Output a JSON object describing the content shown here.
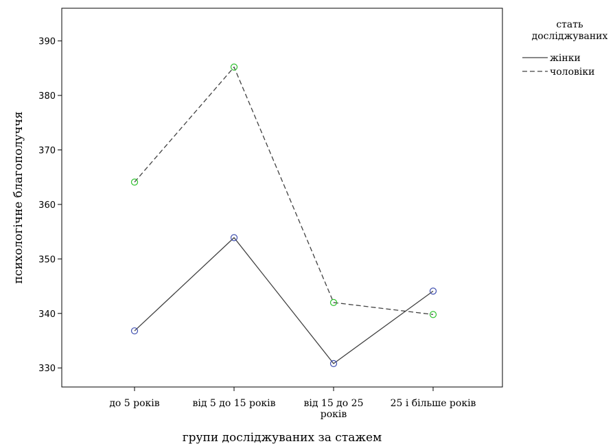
{
  "chart_data": {
    "type": "line",
    "xlabel": "групи досліджуваних за стажем",
    "ylabel": "психологічне благополуччя",
    "categories": [
      [
        "до 5 років"
      ],
      [
        "від 5 до 15 років"
      ],
      [
        "від 15 до 25",
        "років"
      ],
      [
        "25 і більше років"
      ]
    ],
    "ylim": [
      326.5,
      396
    ],
    "yticks": [
      330,
      340,
      350,
      360,
      370,
      380,
      390
    ],
    "grid": false,
    "legend": {
      "title": [
        "стать",
        "досліджуваних"
      ],
      "placement": "right"
    },
    "series": [
      {
        "name": "жінки",
        "values": [
          336.8,
          353.9,
          330.8,
          344.1
        ],
        "line_color": "#404040",
        "marker_color": "#3f4fb0",
        "dash": "solid"
      },
      {
        "name": "чоловіки",
        "values": [
          364.1,
          385.2,
          342.0,
          339.8
        ],
        "line_color": "#404040",
        "marker_color": "#2ec02e",
        "dash": "dashed"
      }
    ]
  }
}
